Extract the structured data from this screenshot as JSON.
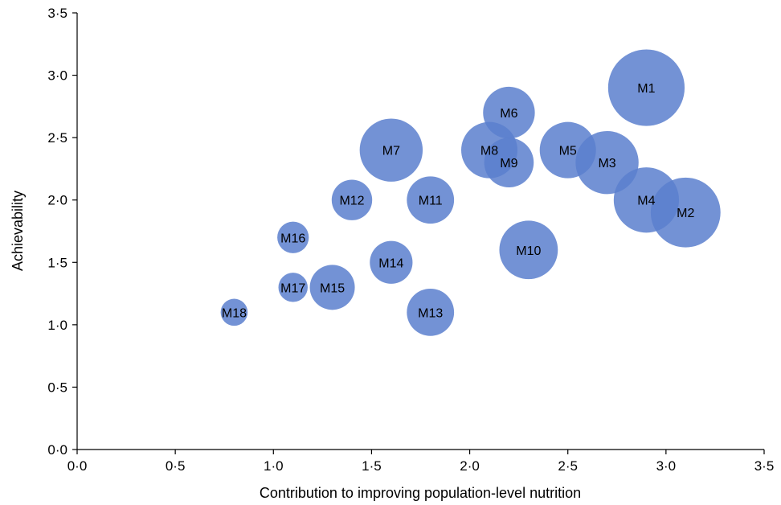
{
  "chart_data": {
    "type": "scatter",
    "title": "",
    "xlabel": "Contribution to improving population-level nutrition",
    "ylabel": "Achievability",
    "xlim": [
      0,
      3.5
    ],
    "ylim": [
      0,
      3.5
    ],
    "x_ticks": [
      "0·0",
      "0·5",
      "1·0",
      "1·5",
      "2·0",
      "2·5",
      "3·0",
      "3·5"
    ],
    "y_ticks": [
      "0·0",
      "0·5",
      "1·0",
      "1·5",
      "2·0",
      "2·5",
      "3·0",
      "3·5"
    ],
    "grid": false,
    "bubble_color": "#5b7fce",
    "points": [
      {
        "label": "M1",
        "x": 2.9,
        "y": 2.9,
        "size": 3.4
      },
      {
        "label": "M2",
        "x": 3.1,
        "y": 1.9,
        "size": 3.1
      },
      {
        "label": "M3",
        "x": 2.7,
        "y": 2.3,
        "size": 2.8
      },
      {
        "label": "M4",
        "x": 2.9,
        "y": 2.0,
        "size": 2.9
      },
      {
        "label": "M5",
        "x": 2.5,
        "y": 2.4,
        "size": 2.5
      },
      {
        "label": "M6",
        "x": 2.2,
        "y": 2.7,
        "size": 2.3
      },
      {
        "label": "M7",
        "x": 1.6,
        "y": 2.4,
        "size": 2.8
      },
      {
        "label": "M8",
        "x": 2.1,
        "y": 2.4,
        "size": 2.5
      },
      {
        "label": "M9",
        "x": 2.2,
        "y": 2.3,
        "size": 2.2
      },
      {
        "label": "M10",
        "x": 2.3,
        "y": 1.6,
        "size": 2.6
      },
      {
        "label": "M11",
        "x": 1.8,
        "y": 2.0,
        "size": 2.1
      },
      {
        "label": "M12",
        "x": 1.4,
        "y": 2.0,
        "size": 1.8
      },
      {
        "label": "M13",
        "x": 1.8,
        "y": 1.1,
        "size": 2.1
      },
      {
        "label": "M14",
        "x": 1.6,
        "y": 1.5,
        "size": 1.9
      },
      {
        "label": "M15",
        "x": 1.3,
        "y": 1.3,
        "size": 2.0
      },
      {
        "label": "M16",
        "x": 1.1,
        "y": 1.7,
        "size": 1.4
      },
      {
        "label": "M17",
        "x": 1.1,
        "y": 1.3,
        "size": 1.3
      },
      {
        "label": "M18",
        "x": 0.8,
        "y": 1.1,
        "size": 1.2
      }
    ]
  }
}
